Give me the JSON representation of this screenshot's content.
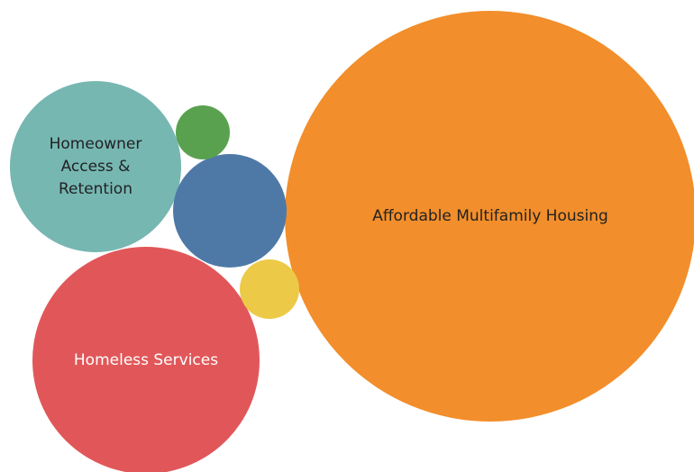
{
  "chart_data": {
    "type": "bubble",
    "title": "",
    "legend": "none",
    "bubbles": [
      {
        "name": "Affordable Multifamily Housing",
        "label_lines": [
          "Affordable Multifamily Housing"
        ],
        "color": "#F28E2B",
        "text_color": "#222222"
      },
      {
        "name": "Homeless Services",
        "label_lines": [
          "Homeless Services"
        ],
        "color": "#E15759",
        "text_color": "#FFFFFF"
      },
      {
        "name": "Homeowner Access & Retention",
        "label_lines": [
          "Homeowner",
          "Access &",
          "Retention"
        ],
        "color": "#76B7B2",
        "text_color": "#222222"
      },
      {
        "name": "",
        "label_lines": [],
        "color": "#4E79A7",
        "text_color": "#FFFFFF"
      },
      {
        "name": "",
        "label_lines": [],
        "color": "#EDC948",
        "text_color": "#222222"
      },
      {
        "name": "",
        "label_lines": [],
        "color": "#59A14F",
        "text_color": "#FFFFFF"
      }
    ]
  }
}
